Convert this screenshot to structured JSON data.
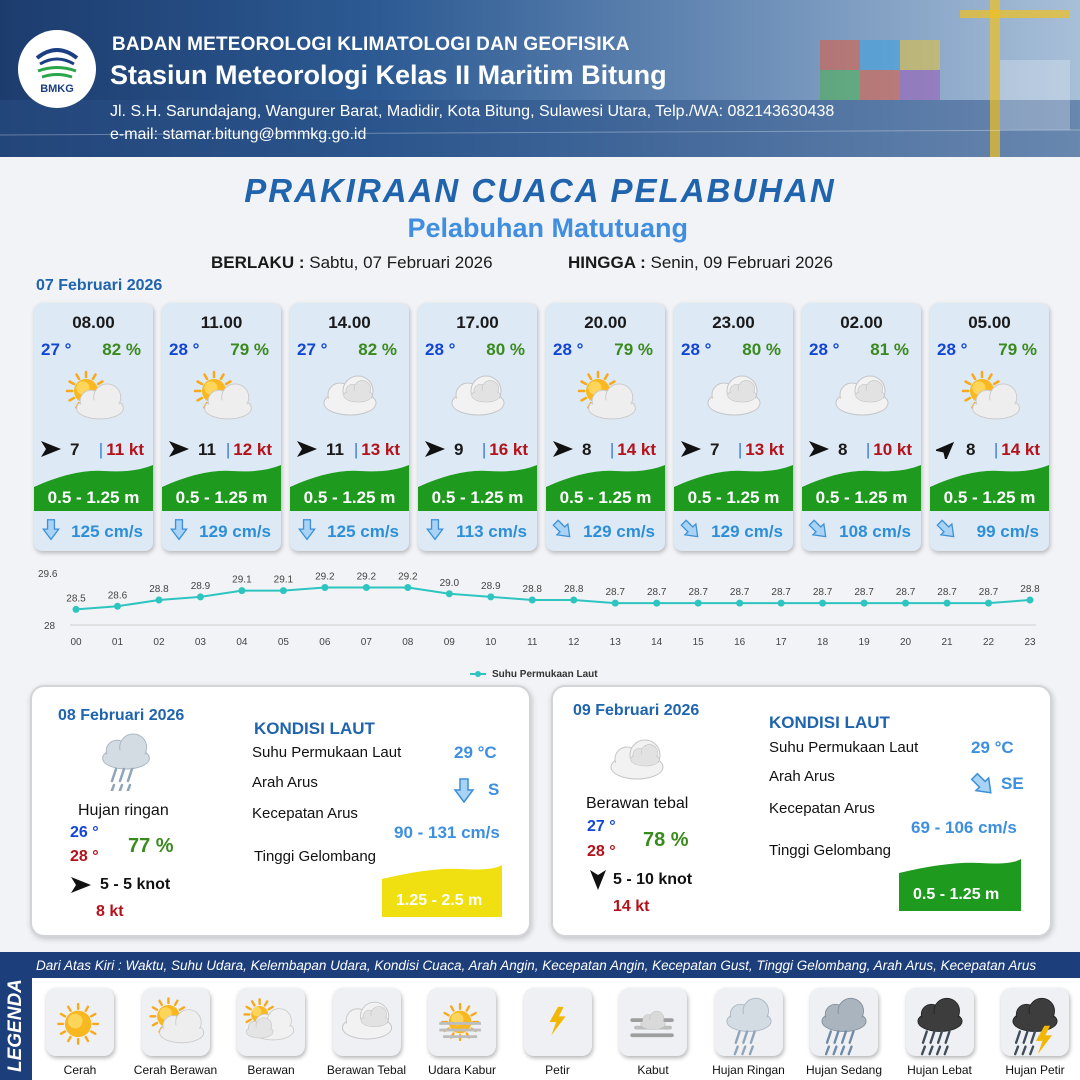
{
  "header": {
    "org": "BADAN METEOROLOGI KLIMATOLOGI DAN GEOFISIKA",
    "station": "Stasiun Meteorologi Kelas II Maritim Bitung",
    "address": "Jl. S.H. Sarundajang, Wangurer Barat, Madidir, Kota Bitung, Sulawesi Utara, Telp./WA: 082143630438",
    "email": "e-mail: stamar.bitung@bmmkg.go.id",
    "logo_text": "BMKG"
  },
  "title": "PRAKIRAAN CUACA PELABUHAN",
  "subtitle": "Pelabuhan Matutuang",
  "validity": {
    "from_label": "BERLAKU :",
    "from_value": "Sabtu, 07 Februari 2026",
    "to_label": "HINGGA :",
    "to_value": "Senin, 09 Februari 2026"
  },
  "day1_date": "07 Februari 2026",
  "forecasts": [
    {
      "time": "08.00",
      "temp": "27 °",
      "humidity": "82 %",
      "icon": "cerah-berawan-icon",
      "wind_dir": "E",
      "wind": "7",
      "gust": "11 kt",
      "wave": "0.5 - 1.25 m",
      "current_dir": "S",
      "current": "125 cm/s"
    },
    {
      "time": "11.00",
      "temp": "28 °",
      "humidity": "79 %",
      "icon": "cerah-berawan-icon",
      "wind_dir": "E",
      "wind": "11",
      "gust": "12 kt",
      "wave": "0.5 - 1.25 m",
      "current_dir": "S",
      "current": "129 cm/s"
    },
    {
      "time": "14.00",
      "temp": "27 °",
      "humidity": "82 %",
      "icon": "berawan-tebal-icon",
      "wind_dir": "E",
      "wind": "11",
      "gust": "13 kt",
      "wave": "0.5 - 1.25 m",
      "current_dir": "S",
      "current": "125 cm/s"
    },
    {
      "time": "17.00",
      "temp": "28 °",
      "humidity": "80 %",
      "icon": "berawan-tebal-icon",
      "wind_dir": "E",
      "wind": "9",
      "gust": "16 kt",
      "wave": "0.5 - 1.25 m",
      "current_dir": "S",
      "current": "113 cm/s"
    },
    {
      "time": "20.00",
      "temp": "28 °",
      "humidity": "79 %",
      "icon": "cerah-berawan-icon",
      "wind_dir": "E",
      "wind": "8",
      "gust": "14 kt",
      "wave": "0.5 - 1.25 m",
      "current_dir": "SE",
      "current": "129 cm/s"
    },
    {
      "time": "23.00",
      "temp": "28 °",
      "humidity": "80 %",
      "icon": "berawan-tebal-icon",
      "wind_dir": "E",
      "wind": "7",
      "gust": "13 kt",
      "wave": "0.5 - 1.25 m",
      "current_dir": "SE",
      "current": "129 cm/s"
    },
    {
      "time": "02.00",
      "temp": "28 °",
      "humidity": "81 %",
      "icon": "berawan-tebal-icon",
      "wind_dir": "E",
      "wind": "8",
      "gust": "10 kt",
      "wave": "0.5 - 1.25 m",
      "current_dir": "SE",
      "current": "108 cm/s"
    },
    {
      "time": "05.00",
      "temp": "28 °",
      "humidity": "79 %",
      "icon": "cerah-berawan-icon",
      "wind_dir": "NE",
      "wind": "8",
      "gust": "14 kt",
      "wave": "0.5 - 1.25 m",
      "current_dir": "SE",
      "current": "99 cm/s"
    }
  ],
  "chart_data": {
    "type": "line",
    "x": [
      "00",
      "01",
      "02",
      "03",
      "04",
      "05",
      "06",
      "07",
      "08",
      "09",
      "10",
      "11",
      "12",
      "13",
      "14",
      "15",
      "16",
      "17",
      "18",
      "19",
      "20",
      "21",
      "22",
      "23"
    ],
    "series": [
      {
        "name": "Suhu Permukaan Laut",
        "values": [
          28.5,
          28.6,
          28.8,
          28.9,
          29.1,
          29.1,
          29.2,
          29.2,
          29.2,
          29.0,
          28.9,
          28.8,
          28.8,
          28.7,
          28.7,
          28.7,
          28.7,
          28.7,
          28.7,
          28.7,
          28.7,
          28.7,
          28.7,
          28.8
        ],
        "color": "#2ec4c0"
      }
    ],
    "y_ticks": [
      "28",
      "29.6"
    ],
    "ylim": [
      28,
      29.6
    ],
    "legend": "bottom-center"
  },
  "day2": {
    "date": "08 Februari 2026",
    "condition": "Hujan ringan",
    "icon": "hujan-ringan-icon",
    "tmin": "26 °",
    "tmax": "28 °",
    "humidity": "77 %",
    "wind_dir": "E",
    "wind": "5  - 5 knot",
    "gust": "8 kt",
    "kondisi_title": "KONDISI LAUT",
    "sst_label": "Suhu Permukaan Laut",
    "sst_value": "29 °C",
    "current_dir_label": "Arah Arus",
    "current_dir_icon": "S",
    "current_dir_value": "S",
    "current_speed_label": "Kecepatan Arus",
    "current_speed_value": "90 - 131 cm/s",
    "wave_label": "Tinggi Gelombang",
    "wave_value": "1.25 - 2.5 m",
    "wave_color": "#f0e011"
  },
  "day3": {
    "date": "09 Februari 2026",
    "condition": "Berawan tebal",
    "icon": "berawan-tebal-icon",
    "tmin": "27 °",
    "tmax": "28 °",
    "humidity": "78 %",
    "wind_dir": "S",
    "wind": "5  - 10 knot",
    "gust": "14 kt",
    "kondisi_title": "KONDISI LAUT",
    "sst_label": "Suhu Permukaan Laut",
    "sst_value": "29 °C",
    "current_dir_label": "Arah Arus",
    "current_dir_icon": "SE",
    "current_dir_value": "SE",
    "current_speed_label": "Kecepatan Arus",
    "current_speed_value": "69 - 106 cm/s",
    "wave_label": "Tinggi Gelombang",
    "wave_value": "0.5 - 1.25 m",
    "wave_color": "#1e9a1e"
  },
  "legend": {
    "title": "LEGENDA",
    "description": "Dari Atas Kiri : Waktu, Suhu Udara, Kelembapan Udara, Kondisi Cuaca, Arah Angin, Kecepatan Angin, Kecepatan Gust, Tinggi Gelombang, Arah Arus, Kecepatan Arus",
    "items": [
      {
        "label": "Cerah",
        "icon": "cerah-icon"
      },
      {
        "label": "Cerah Berawan",
        "icon": "cerah-berawan-icon"
      },
      {
        "label": "Berawan",
        "icon": "berawan-icon"
      },
      {
        "label": "Berawan Tebal",
        "icon": "berawan-tebal-icon"
      },
      {
        "label": "Udara Kabur",
        "icon": "udara-kabur-icon"
      },
      {
        "label": "Petir",
        "icon": "petir-icon"
      },
      {
        "label": "Kabut",
        "icon": "kabut-icon"
      },
      {
        "label": "Hujan Ringan",
        "icon": "hujan-ringan-icon"
      },
      {
        "label": "Hujan Sedang",
        "icon": "hujan-sedang-icon"
      },
      {
        "label": "Hujan Lebat",
        "icon": "hujan-lebat-icon"
      },
      {
        "label": "Hujan Petir",
        "icon": "hujan-petir-icon"
      }
    ]
  },
  "colors": {
    "wave_green": "#1e9a1e",
    "wave_yellow": "#f0e011",
    "title_blue": "#1f64ad",
    "temp_blue": "#1446d6",
    "gust_red": "#b3121b",
    "humidity_green": "#3a8a1e",
    "current_blue": "#2d8fd8"
  }
}
